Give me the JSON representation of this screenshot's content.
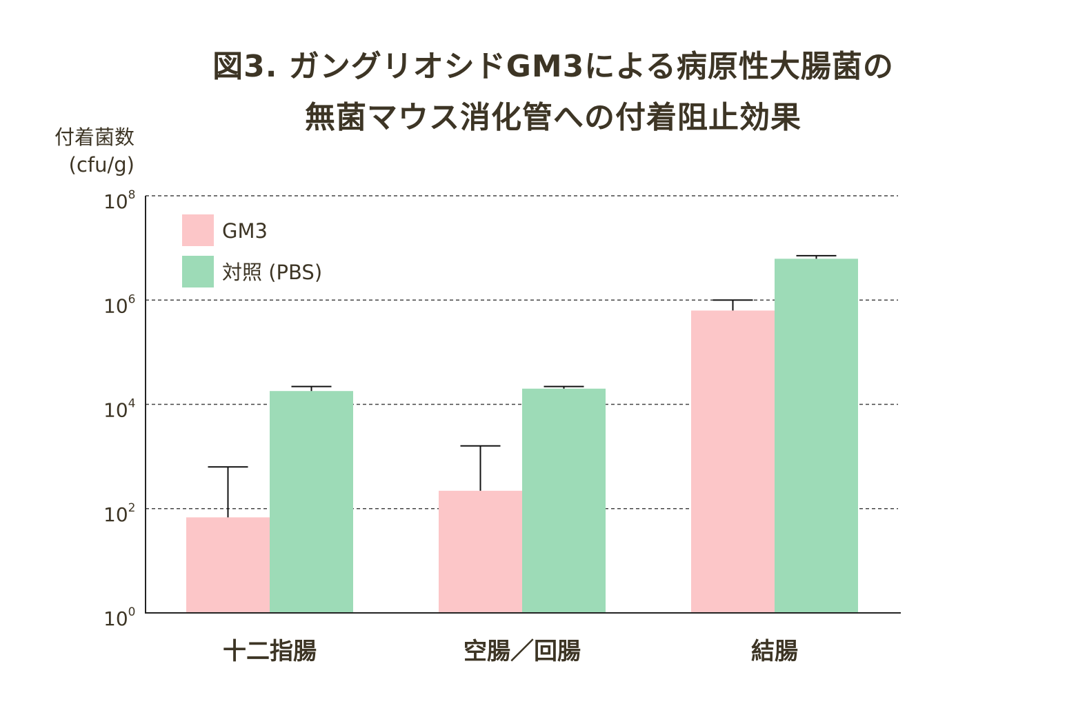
{
  "chart_data": {
    "type": "bar",
    "title_lines": [
      "図3. ガングリオシドGM3による病原性大腸菌の",
      "無菌マウス消化管への付着阻止効果"
    ],
    "ylabel_lines": [
      "付着菌数",
      "(cfu/g)"
    ],
    "yscale": "log",
    "ylim": [
      1,
      100000000
    ],
    "yticks": [
      {
        "base": "10",
        "exp": "0",
        "value": 1
      },
      {
        "base": "10",
        "exp": "2",
        "value": 100
      },
      {
        "base": "10",
        "exp": "4",
        "value": 10000
      },
      {
        "base": "10",
        "exp": "6",
        "value": 1000000
      },
      {
        "base": "10",
        "exp": "8",
        "value": 100000000
      }
    ],
    "grid": "dashed horizontal at major ticks",
    "legend_position": "top-left",
    "categories": [
      "十二指腸",
      "空腸／回腸",
      "結腸"
    ],
    "series": [
      {
        "name": "GM3",
        "color": "#fcc6c8",
        "values": [
          68,
          220,
          630000
        ],
        "error_upper": [
          630,
          1600,
          1000000
        ]
      },
      {
        "name": "対照 (PBS)",
        "color": "#9ddbb7",
        "values": [
          18000,
          20000,
          6200000
        ],
        "error_upper": [
          22000,
          22000,
          7100000
        ]
      }
    ]
  }
}
